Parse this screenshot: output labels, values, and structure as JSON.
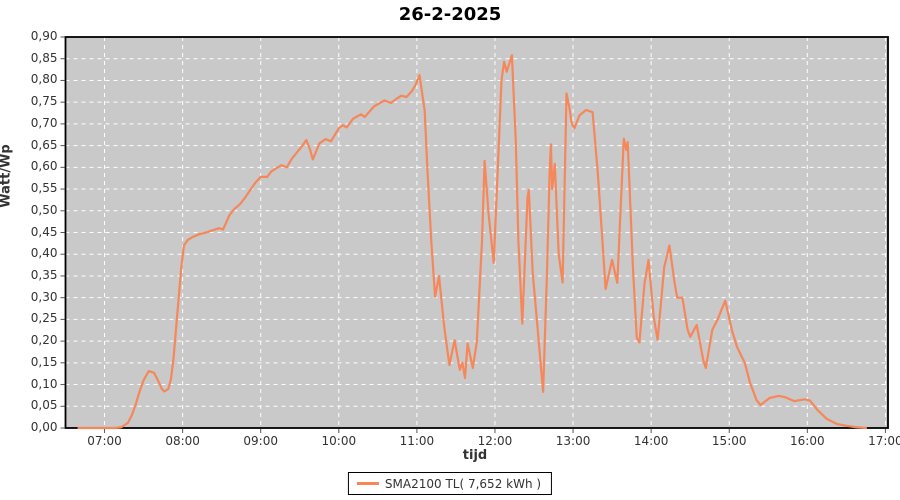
{
  "title": "26-2-2025",
  "colors": {
    "line": "#F5875A",
    "plot_bg": "#C9C9C9",
    "grid": "#FFFFFF",
    "axis": "#000000",
    "tick": "#555555",
    "text": "#333333",
    "outer_bg": "#FFFFFF"
  },
  "y_axis": {
    "label": "Watt/Wp",
    "min": 0,
    "max": 0.9,
    "tick_step": 0.05,
    "ticks": [
      "0,00",
      "0,05",
      "0,10",
      "0,15",
      "0,20",
      "0,25",
      "0,30",
      "0,35",
      "0,40",
      "0,45",
      "0,50",
      "0,55",
      "0,60",
      "0,65",
      "0,70",
      "0,75",
      "0,80",
      "0,85",
      "0,90"
    ]
  },
  "x_axis": {
    "label": "tijd",
    "start_minutes": 390,
    "end_minutes": 1022,
    "tick_start_minutes": 420,
    "tick_step_minutes": 60,
    "ticks": [
      "07:00",
      "08:00",
      "09:00",
      "10:00",
      "11:00",
      "12:00",
      "13:00",
      "14:00",
      "15:00",
      "16:00",
      "17:00"
    ]
  },
  "legend": {
    "label": "SMA2100 TL( 7,652 kWh )"
  },
  "chart_data": {
    "type": "line",
    "title": "26-2-2025",
    "xlabel": "tijd",
    "ylabel": "Watt/Wp",
    "ylim": [
      0,
      0.9
    ],
    "xlim_minutes": [
      390,
      1022
    ],
    "grid": true,
    "grid_style": "white-dashed",
    "legend_position": "bottom",
    "series": [
      {
        "name": "SMA2100 TL( 7,652 kWh )",
        "color": "#F5875A",
        "points_format": "[minutes_since_midnight, watt_per_wp]",
        "points": [
          [
            400,
            0
          ],
          [
            410,
            0
          ],
          [
            420,
            0
          ],
          [
            428,
            0
          ],
          [
            433,
            0.002
          ],
          [
            438,
            0.012
          ],
          [
            441,
            0.03
          ],
          [
            444,
            0.055
          ],
          [
            447,
            0.085
          ],
          [
            450,
            0.11
          ],
          [
            454,
            0.131
          ],
          [
            458,
            0.127
          ],
          [
            461,
            0.11
          ],
          [
            464,
            0.09
          ],
          [
            466,
            0.084
          ],
          [
            469,
            0.09
          ],
          [
            471,
            0.112
          ],
          [
            473,
            0.16
          ],
          [
            475,
            0.23
          ],
          [
            477,
            0.3
          ],
          [
            479,
            0.37
          ],
          [
            481,
            0.42
          ],
          [
            484,
            0.433
          ],
          [
            488,
            0.44
          ],
          [
            493,
            0.446
          ],
          [
            498,
            0.45
          ],
          [
            503,
            0.455
          ],
          [
            508,
            0.46
          ],
          [
            511,
            0.457
          ],
          [
            513,
            0.47
          ],
          [
            516,
            0.49
          ],
          [
            520,
            0.505
          ],
          [
            524,
            0.515
          ],
          [
            528,
            0.53
          ],
          [
            532,
            0.548
          ],
          [
            536,
            0.565
          ],
          [
            540,
            0.578
          ],
          [
            545,
            0.578
          ],
          [
            548,
            0.59
          ],
          [
            552,
            0.598
          ],
          [
            556,
            0.605
          ],
          [
            560,
            0.6
          ],
          [
            564,
            0.62
          ],
          [
            568,
            0.635
          ],
          [
            572,
            0.65
          ],
          [
            575,
            0.663
          ],
          [
            578,
            0.64
          ],
          [
            580,
            0.618
          ],
          [
            583,
            0.64
          ],
          [
            585,
            0.655
          ],
          [
            590,
            0.665
          ],
          [
            594,
            0.66
          ],
          [
            600,
            0.69
          ],
          [
            603,
            0.697
          ],
          [
            606,
            0.692
          ],
          [
            611,
            0.712
          ],
          [
            617,
            0.722
          ],
          [
            620,
            0.716
          ],
          [
            627,
            0.74
          ],
          [
            635,
            0.754
          ],
          [
            640,
            0.748
          ],
          [
            644,
            0.757
          ],
          [
            648,
            0.765
          ],
          [
            652,
            0.762
          ],
          [
            656,
            0.775
          ],
          [
            659,
            0.79
          ],
          [
            662,
            0.812
          ],
          [
            666,
            0.73
          ],
          [
            668,
            0.6
          ],
          [
            671,
            0.433
          ],
          [
            674,
            0.302
          ],
          [
            677,
            0.35
          ],
          [
            681,
            0.233
          ],
          [
            685,
            0.145
          ],
          [
            689,
            0.202
          ],
          [
            693,
            0.134
          ],
          [
            695,
            0.15
          ],
          [
            697,
            0.115
          ],
          [
            699,
            0.195
          ],
          [
            703,
            0.138
          ],
          [
            706,
            0.198
          ],
          [
            710,
            0.43
          ],
          [
            712,
            0.615
          ],
          [
            715,
            0.495
          ],
          [
            719,
            0.38
          ],
          [
            722,
            0.587
          ],
          [
            725,
            0.8
          ],
          [
            727,
            0.843
          ],
          [
            729,
            0.82
          ],
          [
            733,
            0.858
          ],
          [
            736,
            0.66
          ],
          [
            738,
            0.43
          ],
          [
            741,
            0.24
          ],
          [
            745,
            0.53
          ],
          [
            746,
            0.548
          ],
          [
            749,
            0.357
          ],
          [
            752,
            0.256
          ],
          [
            757,
            0.083
          ],
          [
            760,
            0.357
          ],
          [
            762,
            0.587
          ],
          [
            763,
            0.653
          ],
          [
            764,
            0.55
          ],
          [
            766,
            0.608
          ],
          [
            769,
            0.4
          ],
          [
            772,
            0.335
          ],
          [
            775,
            0.77
          ],
          [
            777,
            0.74
          ],
          [
            779,
            0.7
          ],
          [
            781,
            0.69
          ],
          [
            785,
            0.72
          ],
          [
            790,
            0.732
          ],
          [
            795,
            0.727
          ],
          [
            799,
            0.587
          ],
          [
            802,
            0.456
          ],
          [
            805,
            0.32
          ],
          [
            810,
            0.387
          ],
          [
            814,
            0.334
          ],
          [
            818,
            0.6
          ],
          [
            819,
            0.666
          ],
          [
            821,
            0.64
          ],
          [
            822,
            0.658
          ],
          [
            826,
            0.37
          ],
          [
            829,
            0.207
          ],
          [
            831,
            0.197
          ],
          [
            835,
            0.334
          ],
          [
            838,
            0.387
          ],
          [
            842,
            0.256
          ],
          [
            845,
            0.203
          ],
          [
            850,
            0.37
          ],
          [
            854,
            0.42
          ],
          [
            858,
            0.334
          ],
          [
            860,
            0.3
          ],
          [
            864,
            0.3
          ],
          [
            868,
            0.226
          ],
          [
            870,
            0.21
          ],
          [
            875,
            0.237
          ],
          [
            880,
            0.157
          ],
          [
            882,
            0.138
          ],
          [
            887,
            0.226
          ],
          [
            891,
            0.249
          ],
          [
            895,
            0.279
          ],
          [
            897,
            0.293
          ],
          [
            902,
            0.226
          ],
          [
            906,
            0.187
          ],
          [
            909,
            0.168
          ],
          [
            912,
            0.15
          ],
          [
            916,
            0.104
          ],
          [
            921,
            0.064
          ],
          [
            924,
            0.053
          ],
          [
            931,
            0.069
          ],
          [
            938,
            0.074
          ],
          [
            943,
            0.071
          ],
          [
            950,
            0.062
          ],
          [
            958,
            0.066
          ],
          [
            962,
            0.063
          ],
          [
            968,
            0.041
          ],
          [
            975,
            0.021
          ],
          [
            983,
            0.009
          ],
          [
            990,
            0.005
          ],
          [
            997,
            0.002
          ],
          [
            1005,
            0
          ]
        ]
      }
    ]
  }
}
